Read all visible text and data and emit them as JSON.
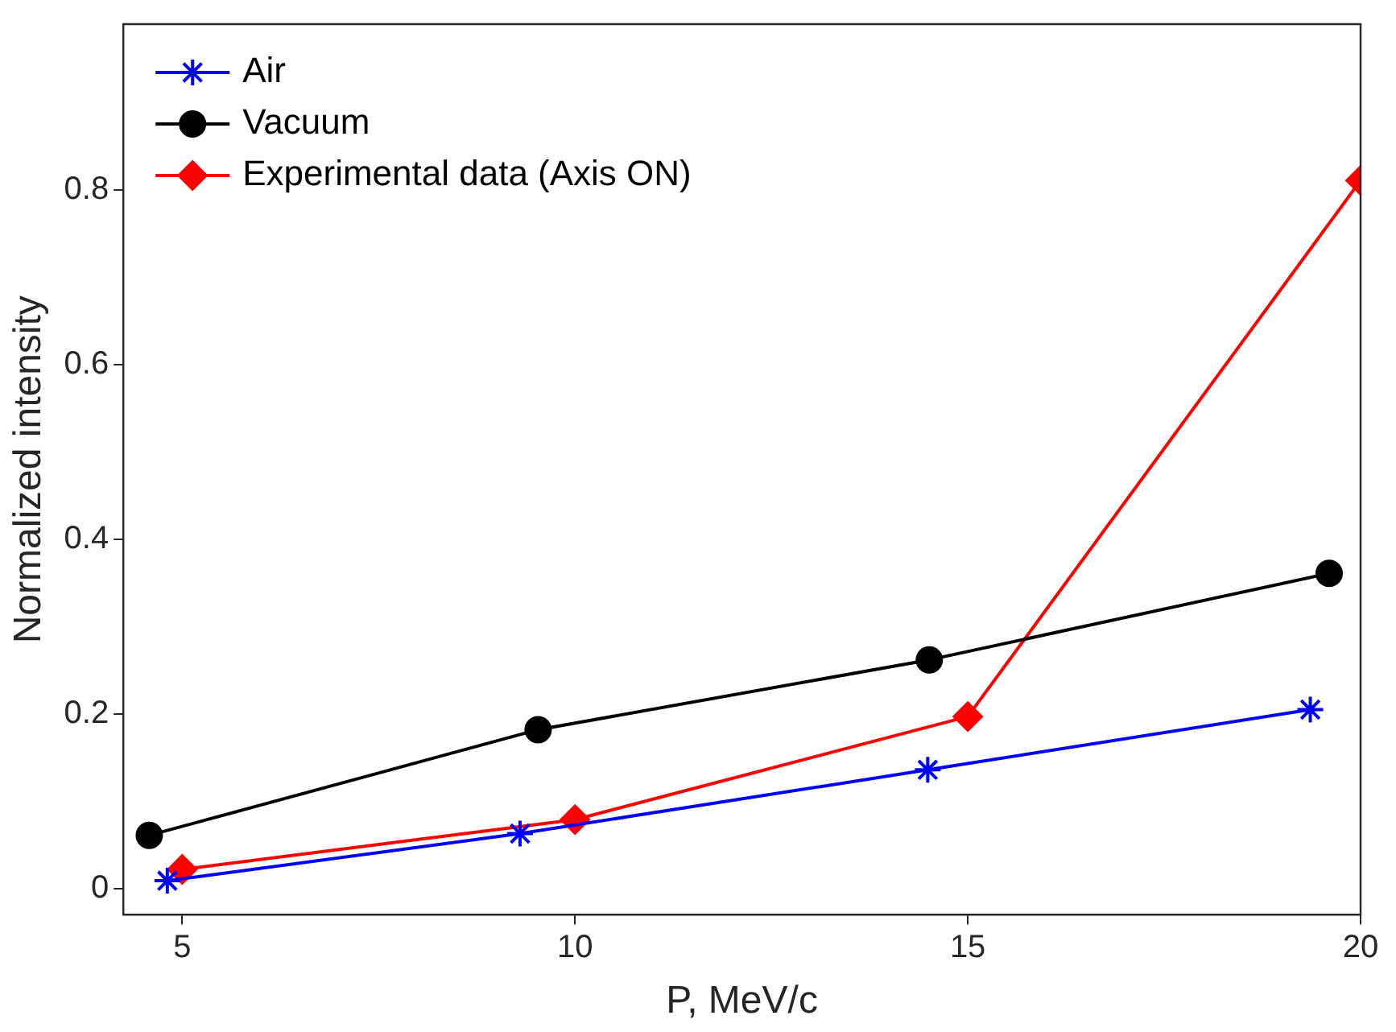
{
  "chart_data": {
    "type": "line",
    "xlabel": "P, MeV/c",
    "ylabel": "Normalized intensity",
    "xlim": [
      4.25,
      20
    ],
    "xticks": [
      5,
      10,
      15,
      20
    ],
    "ylim": [
      -0.03,
      0.99
    ],
    "yticks": [
      0,
      0.2,
      0.4,
      0.6,
      0.8
    ],
    "grid": false,
    "legend": "top left",
    "series": [
      {
        "name": "Air",
        "color": "#0000ff",
        "marker": "cross",
        "x": [
          4.81,
          9.3,
          14.49,
          19.36
        ],
        "values": [
          0.009,
          0.063,
          0.136,
          0.205
        ]
      },
      {
        "name": "Vacuum",
        "color": "#000000",
        "marker": "circle",
        "x": [
          4.58,
          9.53,
          14.51,
          19.6
        ],
        "values": [
          0.061,
          0.182,
          0.262,
          0.361
        ]
      },
      {
        "name": "Experimental data (Axis ON)",
        "color": "#ff0000",
        "marker": "diamond",
        "x": [
          5,
          10,
          15,
          20
        ],
        "values": [
          0.022,
          0.079,
          0.197,
          0.811
        ]
      }
    ]
  }
}
